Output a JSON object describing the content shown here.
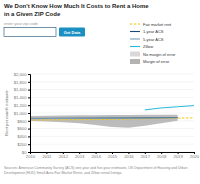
{
  "chart_data": {
    "type": "line",
    "title": [
      "We Don't Know How Much It Costs to Rent a Home",
      "in a Given ZIP Code"
    ],
    "ylabel": "Rent per month estimate",
    "annotations": [
      "enter your zip code",
      "Get Data",
      "Sources: American Community Survey (ACS) one-year and five-year estimates, US Department of Housing and Urban",
      "Development (HUD) Small Area Fair Market Rents, and Zillow rental listings."
    ],
    "x": [
      2010,
      2011,
      2012,
      2013,
      2014,
      2015,
      2016,
      2017,
      2018,
      2019,
      2020
    ],
    "series": [
      {
        "name": "Fair market rent",
        "color": "#f5c518",
        "line_style": "dashed",
        "values": [
          820,
          822,
          825,
          828,
          832,
          838,
          845,
          852,
          860,
          868,
          875
        ]
      },
      {
        "name": "1-year ACS",
        "color": "#1a4a6e",
        "line_style": "solid",
        "values": [
          860,
          862,
          864,
          866,
          868,
          870,
          872,
          876,
          880,
          885,
          null
        ]
      },
      {
        "name": "5-year ACS",
        "color": "#7a9db5",
        "line_style": "solid",
        "values": [
          855,
          857,
          859,
          861,
          863,
          865,
          867,
          870,
          873,
          877,
          null
        ]
      },
      {
        "name": "Zillow",
        "color": "#29b8d8",
        "line_style": "solid",
        "values": [
          null,
          null,
          null,
          null,
          null,
          null,
          null,
          1080,
          1130,
          1160,
          1190
        ]
      },
      {
        "name": "No margin of error",
        "type": "area",
        "color": "#d0d0d0",
        "upper": [
          870,
          872,
          874,
          876,
          878,
          880,
          882,
          884,
          886,
          890,
          null
        ],
        "lower": [
          848,
          850,
          852,
          854,
          856,
          858,
          860,
          864,
          868,
          872,
          null
        ]
      },
      {
        "name": "Margin of error",
        "type": "area",
        "color": "#a0a0a0",
        "upper": [
          920,
          930,
          935,
          940,
          945,
          948,
          950,
          952,
          955,
          958,
          null
        ],
        "lower": [
          795,
          780,
          760,
          735,
          690,
          640,
          620,
          670,
          740,
          800,
          null
        ]
      }
    ],
    "xlim": [
      2010,
      2020
    ],
    "xticks": [
      2010,
      2011,
      2012,
      2013,
      2014,
      2015,
      2016,
      2017,
      2018,
      2019,
      2020
    ],
    "ylim": [
      0,
      2000
    ],
    "yticks": [
      {
        "value": 0,
        "label": "$0"
      },
      {
        "value": 200,
        "label": "$200"
      },
      {
        "value": 400,
        "label": "$400"
      },
      {
        "value": 600,
        "label": "$600"
      },
      {
        "value": 800,
        "label": "$800"
      },
      {
        "value": 1000,
        "label": "$1,000"
      },
      {
        "value": 1200,
        "label": "$1,200"
      },
      {
        "value": 1400,
        "label": "$1,400"
      },
      {
        "value": 1600,
        "label": "$1,600"
      },
      {
        "value": 1800,
        "label": "$1,800"
      },
      {
        "value": 2000,
        "label": "$2,000"
      }
    ],
    "grid": true,
    "legend": "upper right"
  }
}
